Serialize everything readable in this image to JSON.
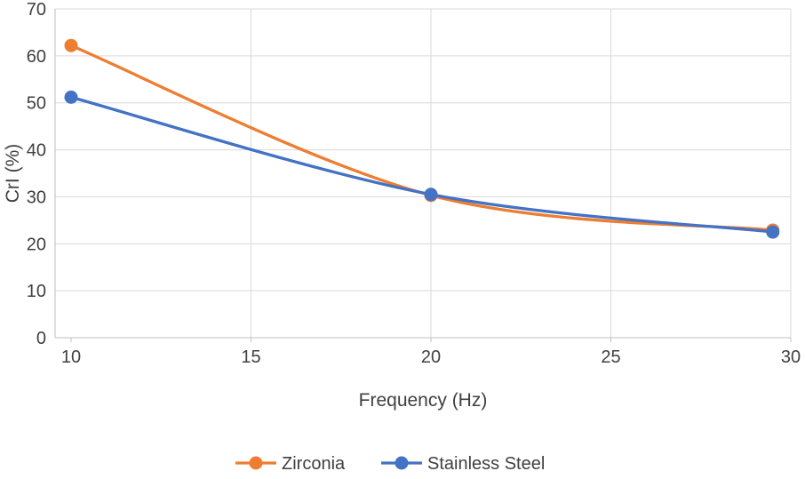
{
  "chart_data": {
    "type": "line",
    "xlabel": "Frequency (Hz)",
    "ylabel": "CrI (%)",
    "x": [
      10,
      20,
      29.5
    ],
    "series": [
      {
        "name": "Zirconia",
        "color": "#ED7D31",
        "values": [
          62.2,
          30.3,
          22.9
        ]
      },
      {
        "name": "Stainless Steel",
        "color": "#4472C4",
        "values": [
          51.2,
          30.5,
          22.5
        ]
      }
    ],
    "xlim": [
      10,
      30
    ],
    "ylim": [
      0,
      70
    ],
    "x_ticks": [
      10,
      15,
      20,
      25,
      30
    ],
    "y_ticks": [
      0,
      10,
      20,
      30,
      40,
      50,
      60,
      70
    ],
    "grid": "both",
    "smooth_lines": true,
    "marker": "circle",
    "legend_position": "bottom",
    "axis_color": "#BFBFBF",
    "gridline_color": "#D9D9D9",
    "text_color": "#404040"
  }
}
